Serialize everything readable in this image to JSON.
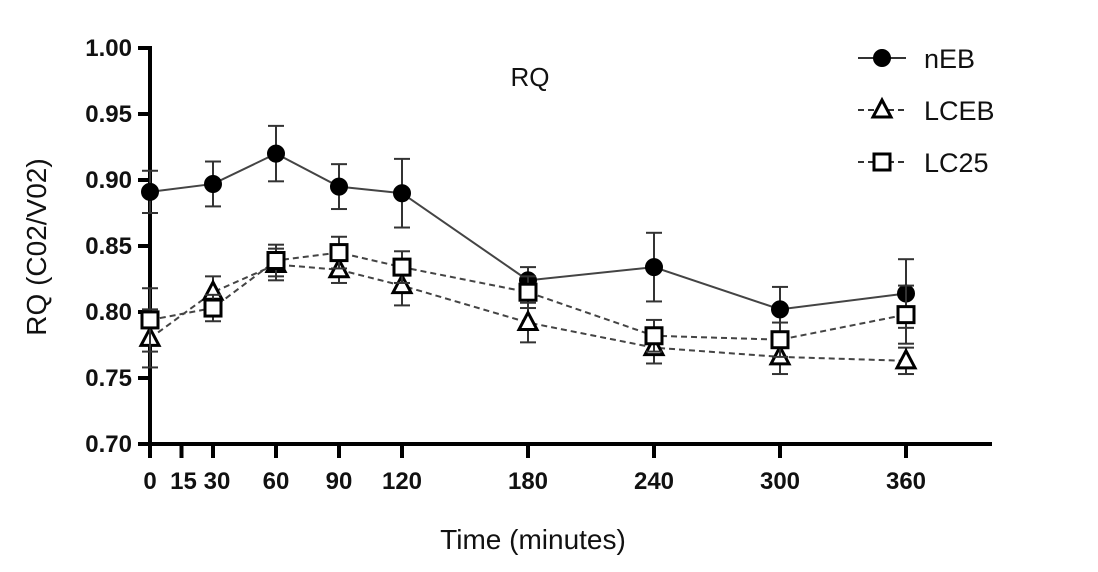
{
  "chart_data": {
    "type": "line",
    "title": "RQ",
    "xlabel": "Time (minutes)",
    "ylabel": "RQ (C02/V02)",
    "xlim": [
      0,
      400
    ],
    "ylim": [
      0.7,
      1.0
    ],
    "x_ticks": [
      0,
      15,
      30,
      60,
      90,
      120,
      180,
      240,
      300,
      360
    ],
    "x_tick_labels": [
      "0",
      "15",
      "30",
      "60",
      "90",
      "120",
      "180",
      "240",
      "300",
      "360"
    ],
    "y_ticks": [
      0.7,
      0.75,
      0.8,
      0.85,
      0.9,
      0.95,
      1.0
    ],
    "y_tick_labels": [
      "0.70",
      "0.75",
      "0.80",
      "0.85",
      "0.90",
      "0.95",
      "1.00"
    ],
    "legend_position": "top-right",
    "series": [
      {
        "name": "nEB",
        "marker": "circle-filled",
        "line": "solid",
        "x": [
          0,
          30,
          60,
          90,
          120,
          180,
          240,
          300,
          360
        ],
        "values": [
          0.891,
          0.897,
          0.92,
          0.895,
          0.89,
          0.824,
          0.834,
          0.802,
          0.814
        ],
        "errors": [
          0.016,
          0.017,
          0.021,
          0.017,
          0.026,
          0.01,
          0.026,
          0.017,
          0.026
        ]
      },
      {
        "name": "LCEB",
        "marker": "triangle-open",
        "line": "dashed",
        "x": [
          0,
          30,
          60,
          90,
          120,
          180,
          240,
          300,
          360
        ],
        "values": [
          0.78,
          0.815,
          0.836,
          0.832,
          0.82,
          0.792,
          0.773,
          0.766,
          0.763
        ],
        "errors": [
          0.022,
          0.012,
          0.012,
          0.01,
          0.015,
          0.015,
          0.012,
          0.013,
          0.01
        ]
      },
      {
        "name": "LC25",
        "marker": "square-open",
        "line": "dashed",
        "x": [
          0,
          30,
          60,
          90,
          120,
          180,
          240,
          300,
          360
        ],
        "values": [
          0.794,
          0.803,
          0.839,
          0.845,
          0.834,
          0.815,
          0.782,
          0.779,
          0.798
        ],
        "errors": [
          0.024,
          0.01,
          0.012,
          0.012,
          0.012,
          0.012,
          0.012,
          0.013,
          0.022
        ]
      }
    ]
  }
}
